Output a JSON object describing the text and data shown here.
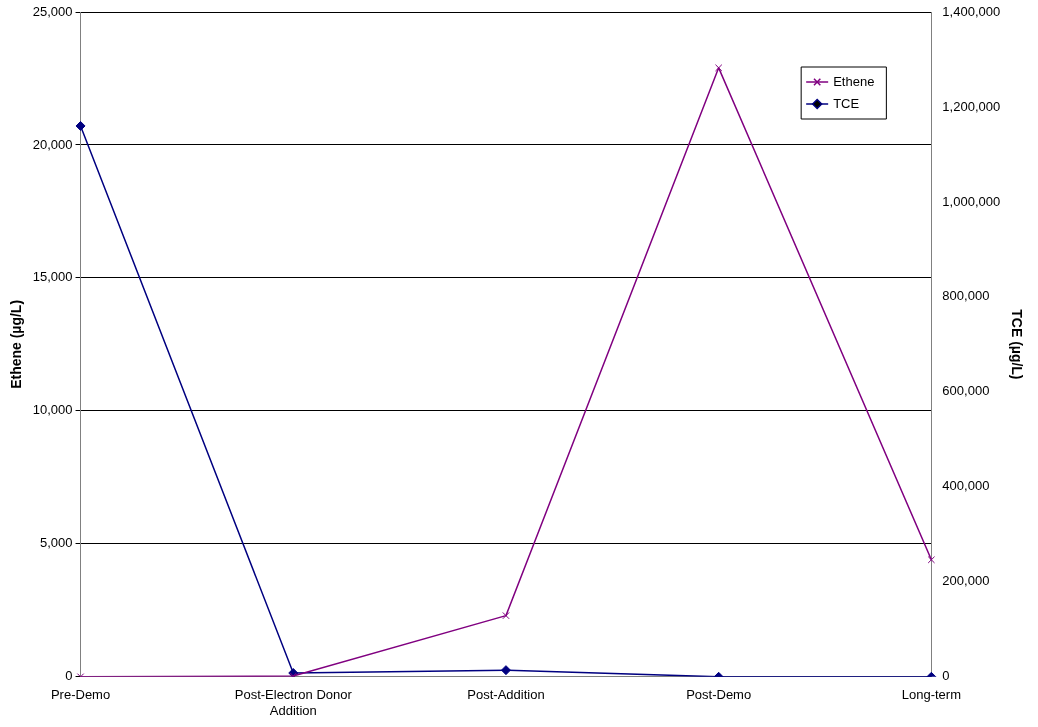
{
  "chart_data": {
    "type": "line",
    "categories": [
      "Pre-Demo",
      "Post-Electron Donor Addition",
      "Post-Addition",
      "Post-Demo",
      "Long-term"
    ],
    "series": [
      {
        "name": "Ethene",
        "color": "#800080",
        "marker": "cross",
        "values": [
          0,
          30,
          2300,
          22900,
          4400
        ]
      },
      {
        "name": "TCE",
        "color": "#000080",
        "marker": "diamond",
        "axis": "y2",
        "values": [
          1160000,
          8000,
          14000,
          0,
          0
        ]
      }
    ],
    "ylabel": "Ethene (µg/L)",
    "y2label": "TCE (µg/L)",
    "ylim": [
      0,
      25000
    ],
    "yticks": [
      0,
      {
        "value": 5000,
        "label": "5,000"
      },
      {
        "value": 10000,
        "label": "10,000"
      },
      {
        "value": 15000,
        "label": "15,000"
      },
      {
        "value": 20000,
        "label": "20,000"
      },
      {
        "value": 25000,
        "label": "25,000"
      }
    ],
    "y2lim": [
      0,
      1400000
    ],
    "y2ticks": [
      0,
      {
        "value": 200000,
        "label": "200,000"
      },
      {
        "value": 400000,
        "label": "400,000"
      },
      {
        "value": 600000,
        "label": "600,000"
      },
      {
        "value": 800000,
        "label": "800,000"
      },
      {
        "value": 1000000,
        "label": "1,000,000"
      },
      {
        "value": 1200000,
        "label": "1,200,000"
      },
      {
        "value": 1400000,
        "label": "1,400,000"
      }
    ],
    "grid": "y",
    "legend": "top right",
    "line_style": "solid"
  }
}
